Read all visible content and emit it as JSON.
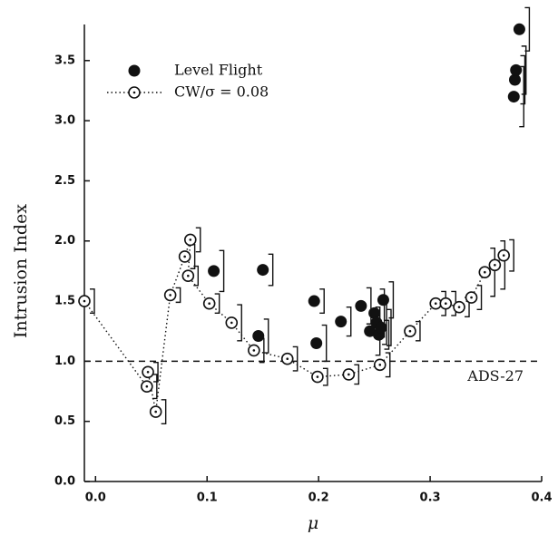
{
  "chart_data": {
    "type": "scatter",
    "x_label": "μ",
    "y_label": "Intrusion Index",
    "xlim": [
      -0.01,
      0.4
    ],
    "ylim": [
      0,
      3.8
    ],
    "xticks": [
      {
        "value": 0,
        "label": "0.0"
      },
      0.1,
      0.2,
      0.3,
      0.4
    ],
    "yticks": [
      {
        "value": 0,
        "label": "0.0"
      },
      0.5,
      {
        "value": 1,
        "label": "1.0"
      },
      1.5,
      {
        "value": 2,
        "label": "2.0"
      },
      2.5,
      {
        "value": 3,
        "label": "3.0"
      },
      3.5
    ],
    "hline": {
      "value": 1,
      "label": "ADS-27"
    },
    "legend": "upper left",
    "series": [
      {
        "name": "Level Flight",
        "color": "#111111",
        "marker": "filled",
        "line": "none",
        "x": [
          0.106,
          0.15,
          0.146,
          0.196,
          0.198,
          0.22,
          0.238,
          0.246,
          0.25,
          0.252,
          0.254,
          0.256,
          0.258,
          0.375,
          0.376,
          0.377,
          0.38
        ],
        "values": [
          1.75,
          1.76,
          1.21,
          1.5,
          1.15,
          1.33,
          1.46,
          1.25,
          1.4,
          1.32,
          1.22,
          1.28,
          1.51,
          3.2,
          3.34,
          3.42,
          3.76
        ],
        "errors": [
          0.17,
          0.13,
          0.14,
          0.1,
          0.15,
          0.12,
          0.15,
          0.2,
          0.2,
          0.18,
          0.12,
          0.15,
          0.15,
          0.25,
          0.2,
          0.2,
          0.18
        ]
      },
      {
        "name": "CW/σ = 0.08",
        "color": "#111111",
        "marker": "open",
        "line": "dotted",
        "x": [
          -0.01,
          0.046,
          0.047,
          0.054,
          0.067,
          0.08,
          0.085,
          0.083,
          0.102,
          0.122,
          0.142,
          0.172,
          0.199,
          0.227,
          0.255,
          0.282,
          0.305,
          0.314,
          0.326,
          0.337,
          0.349,
          0.358,
          0.366
        ],
        "values": [
          1.5,
          0.79,
          0.91,
          0.58,
          1.55,
          1.87,
          2.01,
          1.71,
          1.48,
          1.32,
          1.09,
          1.02,
          0.87,
          0.89,
          0.97,
          1.25,
          1.48,
          1.48,
          1.45,
          1.53,
          1.74,
          1.8,
          1.88
        ],
        "errors": [
          0.1,
          0.1,
          0.08,
          0.1,
          0.06,
          0.1,
          0.1,
          0.08,
          0.08,
          0.15,
          0.1,
          0.1,
          0.07,
          0.08,
          0.1,
          0.08,
          0.1,
          0.1,
          0.08,
          0.1,
          0.2,
          0.2,
          0.13
        ]
      }
    ]
  }
}
